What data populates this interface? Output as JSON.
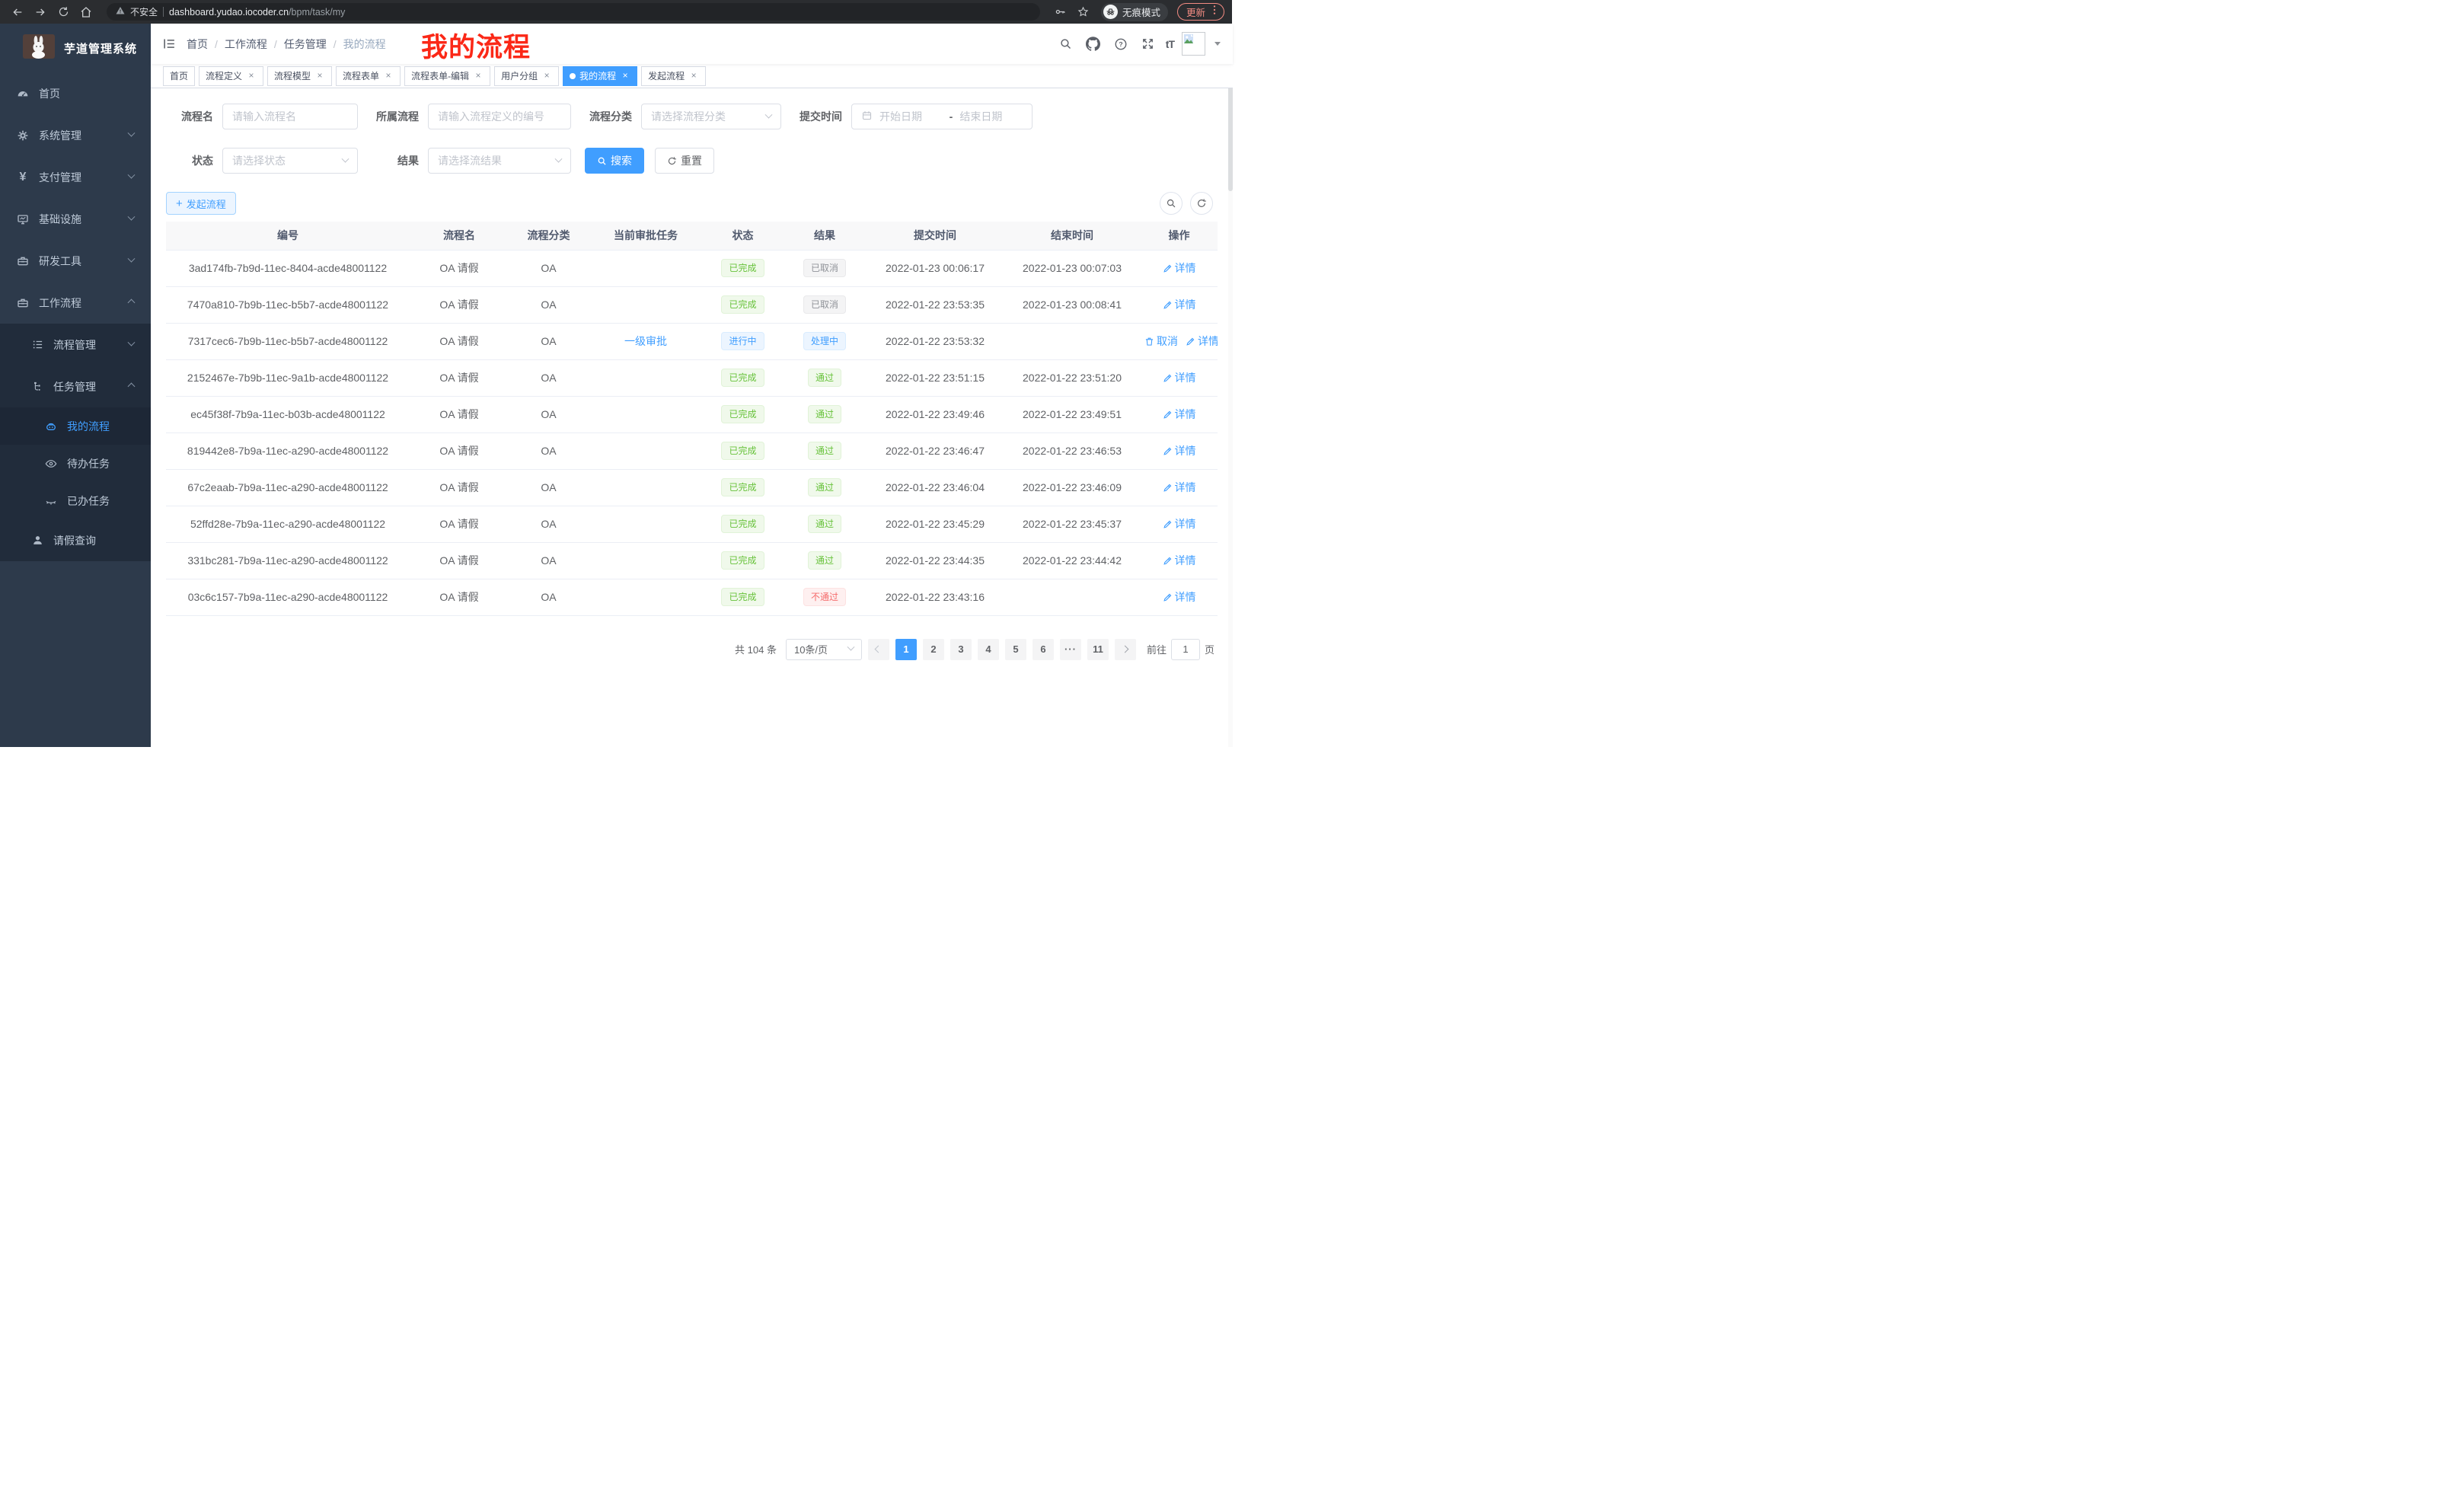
{
  "browser": {
    "security_label": "不安全",
    "url_host": "dashboard.yudao.iocoder.cn",
    "url_path": "/bpm/task/my",
    "incognito_label": "无痕模式",
    "update_label": "更新"
  },
  "sidebar": {
    "title": "芋道管理系统",
    "items": [
      {
        "label": "首页"
      },
      {
        "label": "系统管理"
      },
      {
        "label": "支付管理"
      },
      {
        "label": "基础设施"
      },
      {
        "label": "研发工具"
      },
      {
        "label": "工作流程"
      },
      {
        "label": "流程管理"
      },
      {
        "label": "任务管理"
      },
      {
        "label": "我的流程"
      },
      {
        "label": "待办任务"
      },
      {
        "label": "已办任务"
      },
      {
        "label": "请假查询"
      }
    ]
  },
  "header": {
    "breadcrumb": [
      "首页",
      "工作流程",
      "任务管理",
      "我的流程"
    ],
    "annotation": "我的流程"
  },
  "tabs": [
    {
      "label": "首页",
      "closable": false,
      "active": false
    },
    {
      "label": "流程定义",
      "closable": true,
      "active": false
    },
    {
      "label": "流程模型",
      "closable": true,
      "active": false
    },
    {
      "label": "流程表单",
      "closable": true,
      "active": false
    },
    {
      "label": "流程表单-编辑",
      "closable": true,
      "active": false
    },
    {
      "label": "用户分组",
      "closable": true,
      "active": false
    },
    {
      "label": "我的流程",
      "closable": true,
      "active": true
    },
    {
      "label": "发起流程",
      "closable": true,
      "active": false
    }
  ],
  "filters": {
    "fields": [
      {
        "label": "流程名",
        "placeholder": "请输入流程名"
      },
      {
        "label": "所属流程",
        "placeholder": "请输入流程定义的编号"
      },
      {
        "label": "流程分类",
        "placeholder": "请选择流程分类"
      },
      {
        "label": "提交时间",
        "start_placeholder": "开始日期",
        "range_separator": "-",
        "end_placeholder": "结束日期"
      },
      {
        "label": "状态",
        "placeholder": "请选择状态"
      },
      {
        "label": "结果",
        "placeholder": "请选择流结果"
      }
    ],
    "search_label": "搜索",
    "reset_label": "重置"
  },
  "toolbar": {
    "create_label": "发起流程"
  },
  "table": {
    "columns": [
      "编号",
      "流程名",
      "流程分类",
      "当前审批任务",
      "状态",
      "结果",
      "提交时间",
      "结束时间",
      "操作"
    ],
    "rows": [
      {
        "id": "3ad174fb-7b9d-11ec-8404-acde48001122",
        "name": "OA 请假",
        "category": "OA",
        "task": "",
        "status": "已完成",
        "status_type": "success",
        "result": "已取消",
        "result_type": "info",
        "submit_time": "2022-01-23 00:06:17",
        "end_time": "2022-01-23 00:07:03",
        "actions": [
          {
            "label": "详情",
            "icon": "pen",
            "name": "detail-action"
          }
        ]
      },
      {
        "id": "7470a810-7b9b-11ec-b5b7-acde48001122",
        "name": "OA 请假",
        "category": "OA",
        "task": "",
        "status": "已完成",
        "status_type": "success",
        "result": "已取消",
        "result_type": "info",
        "submit_time": "2022-01-22 23:53:35",
        "end_time": "2022-01-23 00:08:41",
        "actions": [
          {
            "label": "详情",
            "icon": "pen",
            "name": "detail-action"
          }
        ]
      },
      {
        "id": "7317cec6-7b9b-11ec-b5b7-acde48001122",
        "name": "OA 请假",
        "category": "OA",
        "task": "一级审批",
        "status": "进行中",
        "status_type": "primary",
        "result": "处理中",
        "result_type": "primary",
        "submit_time": "2022-01-22 23:53:32",
        "end_time": "",
        "actions": [
          {
            "label": "取消",
            "icon": "trash",
            "name": "cancel-action"
          },
          {
            "label": "详情",
            "icon": "pen",
            "name": "detail-action"
          }
        ]
      },
      {
        "id": "2152467e-7b9b-11ec-9a1b-acde48001122",
        "name": "OA 请假",
        "category": "OA",
        "task": "",
        "status": "已完成",
        "status_type": "success",
        "result": "通过",
        "result_type": "success",
        "submit_time": "2022-01-22 23:51:15",
        "end_time": "2022-01-22 23:51:20",
        "actions": [
          {
            "label": "详情",
            "icon": "pen",
            "name": "detail-action"
          }
        ]
      },
      {
        "id": "ec45f38f-7b9a-11ec-b03b-acde48001122",
        "name": "OA 请假",
        "category": "OA",
        "task": "",
        "status": "已完成",
        "status_type": "success",
        "result": "通过",
        "result_type": "success",
        "submit_time": "2022-01-22 23:49:46",
        "end_time": "2022-01-22 23:49:51",
        "actions": [
          {
            "label": "详情",
            "icon": "pen",
            "name": "detail-action"
          }
        ]
      },
      {
        "id": "819442e8-7b9a-11ec-a290-acde48001122",
        "name": "OA 请假",
        "category": "OA",
        "task": "",
        "status": "已完成",
        "status_type": "success",
        "result": "通过",
        "result_type": "success",
        "submit_time": "2022-01-22 23:46:47",
        "end_time": "2022-01-22 23:46:53",
        "actions": [
          {
            "label": "详情",
            "icon": "pen",
            "name": "detail-action"
          }
        ]
      },
      {
        "id": "67c2eaab-7b9a-11ec-a290-acde48001122",
        "name": "OA 请假",
        "category": "OA",
        "task": "",
        "status": "已完成",
        "status_type": "success",
        "result": "通过",
        "result_type": "success",
        "submit_time": "2022-01-22 23:46:04",
        "end_time": "2022-01-22 23:46:09",
        "actions": [
          {
            "label": "详情",
            "icon": "pen",
            "name": "detail-action"
          }
        ]
      },
      {
        "id": "52ffd28e-7b9a-11ec-a290-acde48001122",
        "name": "OA 请假",
        "category": "OA",
        "task": "",
        "status": "已完成",
        "status_type": "success",
        "result": "通过",
        "result_type": "success",
        "submit_time": "2022-01-22 23:45:29",
        "end_time": "2022-01-22 23:45:37",
        "actions": [
          {
            "label": "详情",
            "icon": "pen",
            "name": "detail-action"
          }
        ]
      },
      {
        "id": "331bc281-7b9a-11ec-a290-acde48001122",
        "name": "OA 请假",
        "category": "OA",
        "task": "",
        "status": "已完成",
        "status_type": "success",
        "result": "通过",
        "result_type": "success",
        "submit_time": "2022-01-22 23:44:35",
        "end_time": "2022-01-22 23:44:42",
        "actions": [
          {
            "label": "详情",
            "icon": "pen",
            "name": "detail-action"
          }
        ]
      },
      {
        "id": "03c6c157-7b9a-11ec-a290-acde48001122",
        "name": "OA 请假",
        "category": "OA",
        "task": "",
        "status": "已完成",
        "status_type": "success",
        "result": "不通过",
        "result_type": "danger",
        "submit_time": "2022-01-22 23:43:16",
        "end_time": "",
        "actions": [
          {
            "label": "详情",
            "icon": "pen",
            "name": "detail-action"
          }
        ]
      }
    ]
  },
  "pagination": {
    "total_label": "共 104 条",
    "page_size_label": "10条/页",
    "pages": [
      {
        "label": "1",
        "active": true
      },
      {
        "label": "2"
      },
      {
        "label": "3"
      },
      {
        "label": "4"
      },
      {
        "label": "5"
      },
      {
        "label": "6"
      },
      {
        "label": "···",
        "more": true
      },
      {
        "label": "11"
      }
    ],
    "goto_label": "前往",
    "goto_value": "1",
    "goto_unit": "页"
  },
  "colors": {
    "primary": "#409eff",
    "success": "#67c23a",
    "info": "#909399",
    "danger": "#f56c6c",
    "sidebar_bg": "#2d3a4b",
    "submenu_bg": "#212c3b",
    "annotation_red": "#fb2817",
    "update_red": "#f28b82"
  }
}
